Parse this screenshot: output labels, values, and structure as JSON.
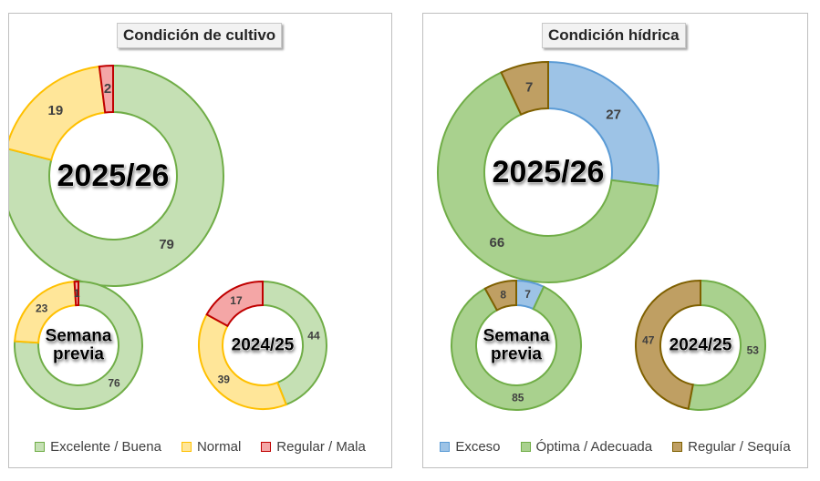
{
  "chart_data": [
    {
      "type": "donut",
      "title": "Condición de cultivo",
      "legend": [
        {
          "name": "Excelente / Buena",
          "fill": "#c5e0b4",
          "stroke": "#70ad47"
        },
        {
          "name": "Normal",
          "fill": "#ffe699",
          "stroke": "#ffc000"
        },
        {
          "name": "Regular / Mala",
          "fill": "#f4a6a6",
          "stroke": "#c00000"
        }
      ],
      "rings": [
        {
          "label": "2025/26",
          "values": [
            79,
            19,
            2
          ]
        },
        {
          "label": "Semana previa",
          "values": [
            76,
            23,
            1
          ]
        },
        {
          "label": "2024/25",
          "values": [
            44,
            39,
            17
          ]
        }
      ]
    },
    {
      "type": "donut",
      "title": "Condición hídrica",
      "legend": [
        {
          "name": "Exceso",
          "fill": "#9dc3e6",
          "stroke": "#5b9bd5"
        },
        {
          "name": "Óptima / Adecuada",
          "fill": "#a9d18e",
          "stroke": "#70ad47"
        },
        {
          "name": "Regular / Sequía",
          "fill": "#bf9f63",
          "stroke": "#7f6000"
        }
      ],
      "rings": [
        {
          "label": "2025/26",
          "values": [
            27,
            66,
            7
          ]
        },
        {
          "label": "Semana previa",
          "values": [
            7,
            85,
            8
          ]
        },
        {
          "label": "2024/25",
          "values": [
            0,
            53,
            47
          ]
        }
      ]
    }
  ]
}
